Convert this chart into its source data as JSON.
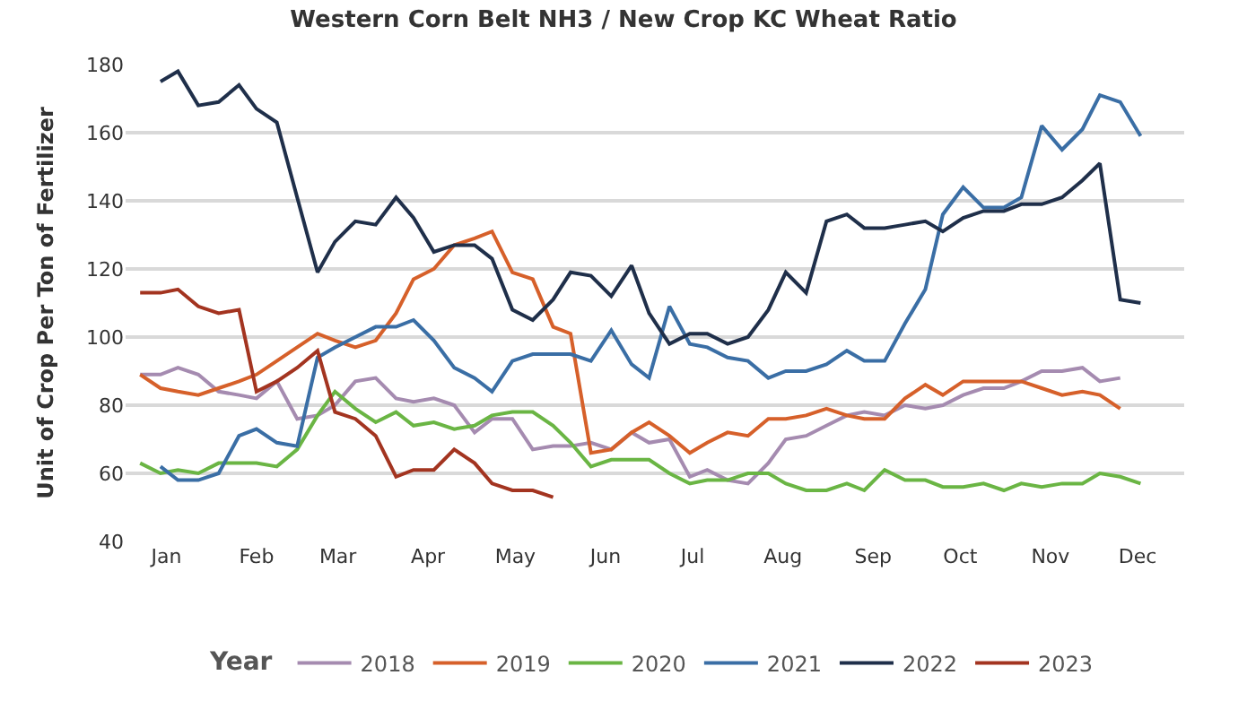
{
  "chart_data": {
    "type": "line",
    "title": "Western Corn Belt NH3 / New Crop KC Wheat Ratio",
    "ylabel": "Unit of Crop Per Ton of Fertilizer",
    "legend_title": "Year",
    "x": [
      "--01-06",
      "--01-13",
      "--01-19",
      "--01-26",
      "--02-02",
      "--02-09",
      "--02-15",
      "--02-22",
      "--03-01",
      "--03-08",
      "--03-14",
      "--03-21",
      "--03-28",
      "--04-04",
      "--04-10",
      "--04-17",
      "--04-24",
      "--05-01",
      "--05-07",
      "--05-14",
      "--05-21",
      "--05-28",
      "--06-03",
      "--06-10",
      "--06-17",
      "--06-24",
      "--06-30",
      "--07-07",
      "--07-14",
      "--07-20",
      "--07-27",
      "--08-03",
      "--08-10",
      "--08-16",
      "--08-23",
      "--08-30",
      "--09-06",
      "--09-12",
      "--09-19",
      "--09-26",
      "--10-03",
      "--10-09",
      "--10-16",
      "--10-23",
      "--10-30",
      "--11-05",
      "--11-12",
      "--11-19",
      "--11-26",
      "--12-02",
      "--12-09",
      "--12-16"
    ],
    "xlim": [
      "--01-01",
      "--12-31"
    ],
    "xticks": [
      {
        "value": "--01-15",
        "label": "Jan"
      },
      {
        "value": "--02-15",
        "label": "Feb"
      },
      {
        "value": "--03-15",
        "label": "Mar"
      },
      {
        "value": "--04-15",
        "label": "Apr"
      },
      {
        "value": "--05-15",
        "label": "May"
      },
      {
        "value": "--06-15",
        "label": "Jun"
      },
      {
        "value": "--07-15",
        "label": "Jul"
      },
      {
        "value": "--08-15",
        "label": "Aug"
      },
      {
        "value": "--09-15",
        "label": "Sep"
      },
      {
        "value": "--10-15",
        "label": "Oct"
      },
      {
        "value": "--11-15",
        "label": "Nov"
      },
      {
        "value": "--12-15",
        "label": "Dec"
      }
    ],
    "ylim": [
      40,
      180
    ],
    "yticks": [
      40,
      60,
      80,
      100,
      120,
      140,
      160,
      180
    ],
    "grid": "y",
    "legend": "bottom",
    "marker": "none",
    "line_style": "solid",
    "series": [
      {
        "name": "2018",
        "color": "#a58bb0",
        "values": [
          89,
          89,
          91,
          89,
          84,
          83,
          82,
          87,
          76,
          77,
          80,
          87,
          88,
          82,
          81,
          82,
          80,
          72,
          76,
          76,
          67,
          68,
          68,
          69,
          67,
          72,
          69,
          70,
          59,
          61,
          58,
          57,
          63,
          70,
          71,
          74,
          77,
          78,
          77,
          80,
          79,
          80,
          83,
          85,
          85,
          87,
          90,
          90,
          91,
          87,
          88,
          null
        ]
      },
      {
        "name": "2019",
        "color": "#d6602a",
        "values": [
          89,
          85,
          84,
          83,
          85,
          87,
          89,
          93,
          97,
          101,
          99,
          97,
          99,
          107,
          117,
          120,
          127,
          129,
          131,
          119,
          117,
          103,
          101,
          66,
          67,
          72,
          75,
          71,
          66,
          69,
          72,
          71,
          76,
          76,
          77,
          79,
          77,
          76,
          76,
          82,
          86,
          83,
          87,
          87,
          87,
          87,
          85,
          83,
          84,
          83,
          79,
          null
        ]
      },
      {
        "name": "2020",
        "color": "#6ab544",
        "values": [
          63,
          60,
          61,
          60,
          63,
          63,
          63,
          62,
          67,
          77,
          84,
          79,
          75,
          78,
          74,
          75,
          73,
          74,
          77,
          78,
          78,
          74,
          69,
          62,
          64,
          64,
          64,
          60,
          57,
          58,
          58,
          60,
          60,
          57,
          55,
          55,
          57,
          55,
          61,
          58,
          58,
          56,
          56,
          57,
          55,
          57,
          56,
          57,
          57,
          60,
          59,
          57
        ]
      },
      {
        "name": "2021",
        "color": "#3a6ea5",
        "values": [
          null,
          62,
          58,
          58,
          60,
          71,
          73,
          69,
          68,
          94,
          97,
          100,
          103,
          103,
          105,
          99,
          91,
          88,
          84,
          93,
          95,
          95,
          95,
          93,
          102,
          92,
          88,
          109,
          98,
          97,
          94,
          93,
          88,
          90,
          90,
          92,
          96,
          93,
          93,
          104,
          114,
          136,
          144,
          138,
          138,
          141,
          162,
          155,
          161,
          171,
          169,
          159
        ]
      },
      {
        "name": "2022",
        "color": "#1f2f4a",
        "values": [
          null,
          175,
          178,
          168,
          169,
          174,
          167,
          163,
          141,
          119,
          128,
          134,
          133,
          141,
          135,
          125,
          127,
          127,
          123,
          108,
          105,
          111,
          119,
          118,
          112,
          121,
          107,
          98,
          101,
          101,
          98,
          100,
          108,
          119,
          113,
          134,
          136,
          132,
          132,
          133,
          134,
          131,
          135,
          137,
          137,
          139,
          139,
          141,
          146,
          151,
          111,
          110
        ]
      },
      {
        "name": "2023",
        "color": "#a33420",
        "values": [
          113,
          113,
          114,
          109,
          107,
          108,
          84,
          87,
          91,
          96,
          78,
          76,
          71,
          59,
          61,
          61,
          67,
          63,
          57,
          55,
          55,
          53,
          null,
          null,
          null,
          null,
          null,
          null,
          null,
          null,
          null,
          null,
          null,
          null,
          null,
          null,
          null,
          null,
          null,
          null,
          null,
          null,
          null,
          null,
          null,
          null,
          null,
          null,
          null,
          null,
          null,
          null
        ]
      }
    ]
  }
}
